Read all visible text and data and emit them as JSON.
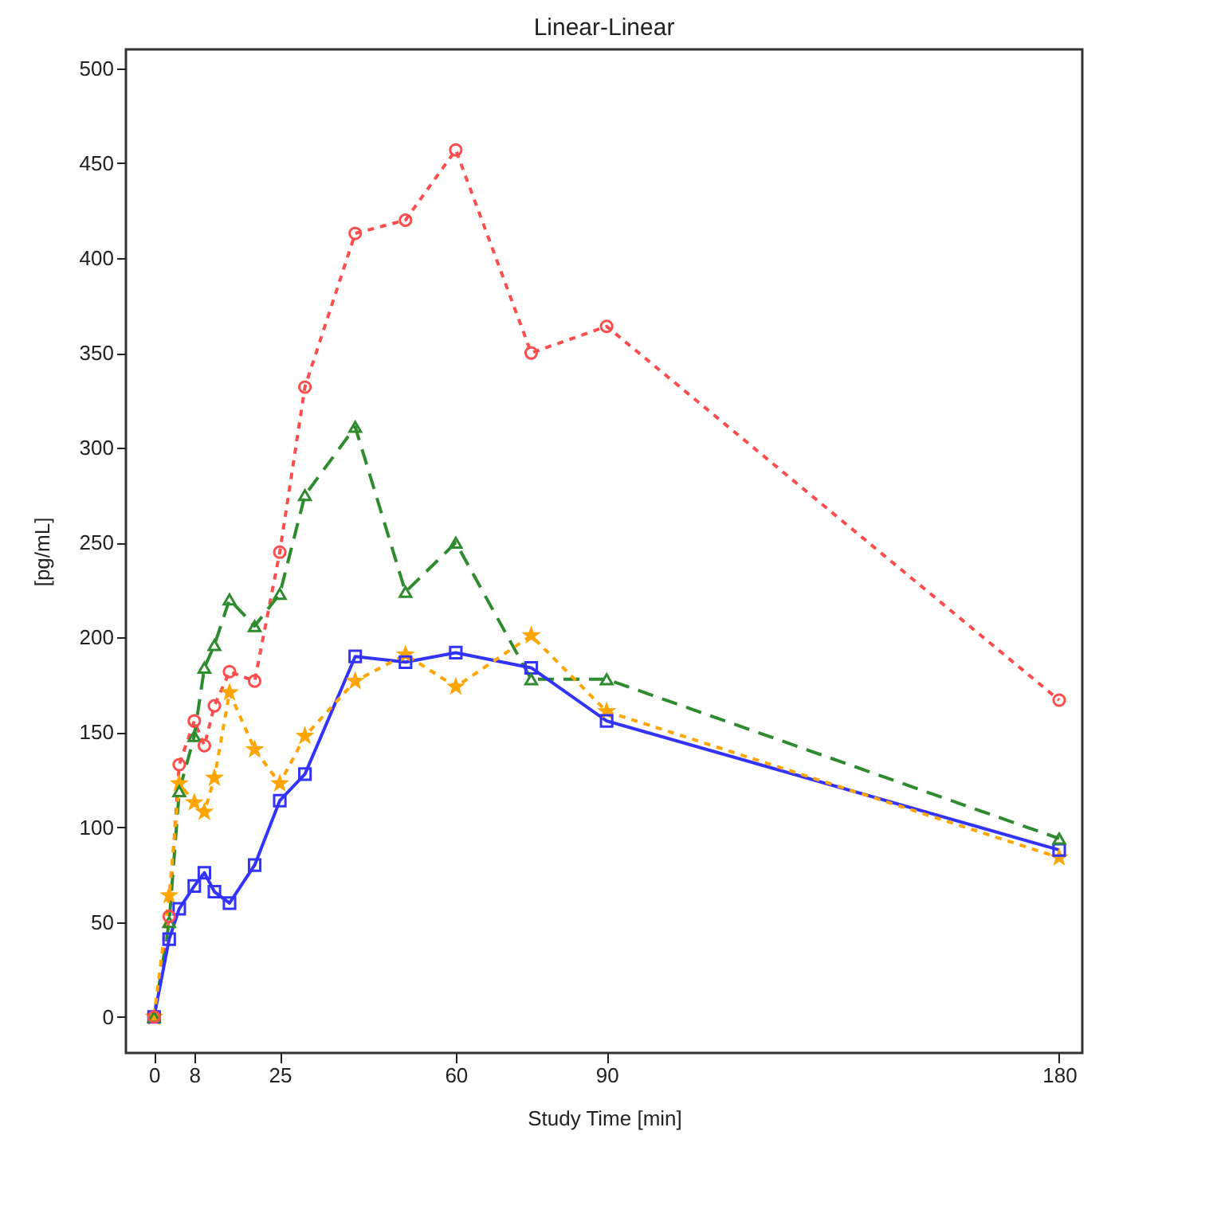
{
  "chart_data": {
    "type": "line",
    "title": "Linear-Linear",
    "xlabel": "Study Time [min]",
    "ylabel": "[pg/mL]",
    "x": [
      0,
      3,
      5,
      8,
      10,
      12,
      15,
      20,
      25,
      30,
      40,
      50,
      60,
      75,
      90,
      180
    ],
    "series": [
      {
        "color": "#ff4d4d",
        "marker": "circle",
        "line_style": "dotted",
        "values": [
          0,
          53,
          133,
          156,
          143,
          164,
          182,
          177,
          245,
          332,
          413,
          420,
          457,
          350,
          364,
          167
        ]
      },
      {
        "color": "#2e8b2e",
        "marker": "triangle",
        "line_style": "dashed",
        "values": [
          0,
          50,
          119,
          148,
          184,
          196,
          220,
          206,
          223,
          275,
          311,
          224,
          250,
          178,
          178,
          94
        ]
      },
      {
        "color": "#3333ff",
        "marker": "square",
        "line_style": "solid",
        "values": [
          0,
          41,
          57,
          69,
          76,
          66,
          60,
          80,
          114,
          128,
          190,
          187,
          192,
          184,
          156,
          88
        ]
      },
      {
        "color": "#ffa500",
        "marker": "star",
        "line_style": "dotted",
        "values": [
          0,
          64,
          123,
          113,
          108,
          126,
          171,
          141,
          123,
          148,
          177,
          191,
          174,
          201,
          161,
          84
        ]
      }
    ],
    "xlim": [
      -5.6,
      184.6
    ],
    "xticks": [
      0,
      8,
      25,
      60,
      90,
      180
    ],
    "ylim": [
      -19,
      510
    ],
    "yticks": [
      0,
      50,
      100,
      150,
      200,
      250,
      300,
      350,
      400,
      450,
      500
    ]
  }
}
